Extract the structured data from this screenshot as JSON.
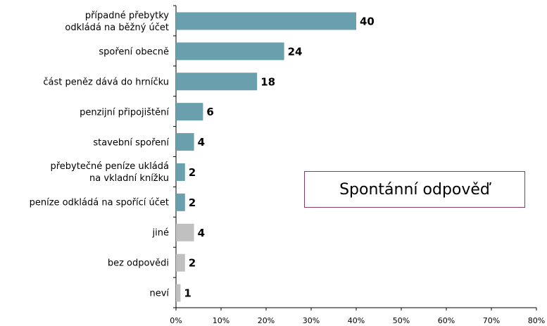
{
  "chart_data": {
    "type": "bar",
    "orientation": "horizontal",
    "categories": [
      "případné přebytky\nodkládá na běžný účet",
      "spoření obecně",
      "část peněz dává do hrníčku",
      "penzijní připojištění",
      "stavební spoření",
      "přebytečné peníze ukládá\nna vkladní knížku",
      "peníze odkládá na spořící účet",
      "jiné",
      "bez odpovědi",
      "neví"
    ],
    "values": [
      40,
      24,
      18,
      6,
      4,
      2,
      2,
      4,
      2,
      1
    ],
    "colors": [
      "#6a9fad",
      "#6a9fad",
      "#6a9fad",
      "#6a9fad",
      "#6a9fad",
      "#6a9fad",
      "#6a9fad",
      "#c0c0c0",
      "#c0c0c0",
      "#c0c0c0"
    ],
    "xlim": [
      0,
      80
    ],
    "xticks": [
      {
        "value": 0,
        "label": "0%"
      },
      {
        "value": 10,
        "label": "10%"
      },
      {
        "value": 20,
        "label": "20%"
      },
      {
        "value": 30,
        "label": "30%"
      },
      {
        "value": 40,
        "label": "40%"
      },
      {
        "value": 50,
        "label": "50%"
      },
      {
        "value": 60,
        "label": "60%"
      },
      {
        "value": 70,
        "label": "70%"
      },
      {
        "value": 80,
        "label": "80%"
      }
    ],
    "annotation": "Spontánní odpověď"
  }
}
